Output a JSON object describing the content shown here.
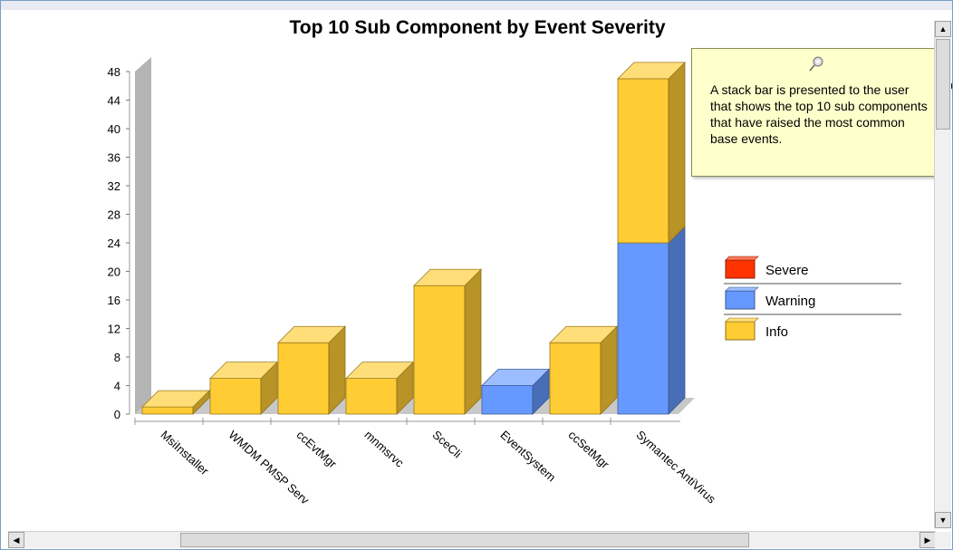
{
  "chart_data": {
    "type": "bar",
    "stacked": true,
    "title": "Top 10 Sub Component by Event Severity",
    "categories": [
      "MsiInstaller",
      "WMDM PMSP Serv",
      "ccEvtMgr",
      "mnmsrvc",
      "SceCli",
      "EventSystem",
      "ccSetMgr",
      "Symantec AntiVirus"
    ],
    "series": [
      {
        "name": "Severe",
        "color": "#ff3300",
        "values": [
          0,
          0,
          0,
          0,
          0,
          0,
          0,
          0
        ]
      },
      {
        "name": "Warning",
        "color": "#6699ff",
        "values": [
          0,
          0,
          0,
          0,
          0,
          4,
          0,
          24
        ]
      },
      {
        "name": "Info",
        "color": "#ffcc33",
        "values": [
          1,
          5,
          10,
          5,
          18,
          0,
          10,
          23
        ]
      }
    ],
    "ylim": [
      0,
      48
    ],
    "yticks": [
      0,
      4,
      8,
      12,
      16,
      20,
      24,
      28,
      32,
      36,
      40,
      44,
      48
    ],
    "xlabel": "",
    "ylabel": "",
    "legend": "right",
    "grid": false,
    "style": "3d"
  },
  "tooltip": {
    "text": "A stack bar is presented to the user that shows the top 10 sub components that have raised the most common base events.",
    "icon": "pushpin-icon"
  }
}
